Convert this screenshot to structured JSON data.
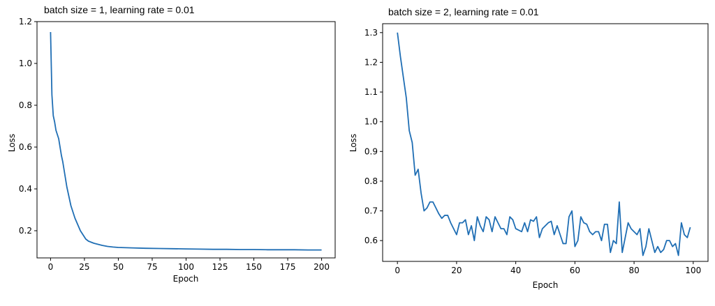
{
  "chart_data": [
    {
      "type": "line",
      "title": "batch size = 1, learning rate = 0.01",
      "xlabel": "Epoch",
      "ylabel": "Loss",
      "xlim": [
        -10,
        210
      ],
      "ylim": [
        0.07,
        1.2
      ],
      "xticks": [
        0,
        25,
        50,
        75,
        100,
        125,
        150,
        175,
        200
      ],
      "yticks": [
        0.2,
        0.4,
        0.6,
        0.8,
        1.0,
        1.2
      ],
      "ytick_format": 1,
      "grid": false,
      "line_color": "#1f6eb4",
      "series": [
        {
          "x": [
            0,
            1,
            2,
            3,
            4,
            5,
            6,
            7,
            8,
            9,
            10,
            11,
            12,
            13,
            14,
            15,
            16,
            17,
            18,
            19,
            20,
            22,
            24,
            26,
            28,
            30,
            32,
            35,
            38,
            42,
            46,
            50,
            60,
            70,
            80,
            90,
            100,
            110,
            120,
            130,
            140,
            150,
            160,
            170,
            180,
            190,
            200
          ],
          "y": [
            1.15,
            0.85,
            0.75,
            0.72,
            0.68,
            0.66,
            0.64,
            0.6,
            0.56,
            0.53,
            0.49,
            0.45,
            0.41,
            0.38,
            0.35,
            0.32,
            0.3,
            0.28,
            0.26,
            0.245,
            0.23,
            0.2,
            0.18,
            0.16,
            0.15,
            0.145,
            0.14,
            0.135,
            0.13,
            0.125,
            0.122,
            0.12,
            0.118,
            0.116,
            0.115,
            0.114,
            0.113,
            0.112,
            0.111,
            0.111,
            0.11,
            0.11,
            0.109,
            0.109,
            0.109,
            0.108,
            0.108
          ]
        }
      ]
    },
    {
      "type": "line",
      "title": "batch size = 2, learning rate = 0.01",
      "xlabel": "Epoch",
      "ylabel": "Loss",
      "xlim": [
        -5,
        105
      ],
      "ylim": [
        0.53,
        1.33
      ],
      "xticks": [
        0,
        20,
        40,
        60,
        80,
        100
      ],
      "yticks": [
        0.6,
        0.7,
        0.8,
        0.9,
        1.0,
        1.1,
        1.2,
        1.3
      ],
      "ytick_format": 1,
      "grid": false,
      "line_color": "#1f6eb4",
      "series": [
        {
          "x": [
            0,
            1,
            2,
            3,
            4,
            5,
            6,
            7,
            8,
            9,
            10,
            11,
            12,
            13,
            14,
            15,
            16,
            17,
            18,
            19,
            20,
            21,
            22,
            23,
            24,
            25,
            26,
            27,
            28,
            29,
            30,
            31,
            32,
            33,
            34,
            35,
            36,
            37,
            38,
            39,
            40,
            41,
            42,
            43,
            44,
            45,
            46,
            47,
            48,
            49,
            50,
            51,
            52,
            53,
            54,
            55,
            56,
            57,
            58,
            59,
            60,
            61,
            62,
            63,
            64,
            65,
            66,
            67,
            68,
            69,
            70,
            71,
            72,
            73,
            74,
            75,
            76,
            77,
            78,
            79,
            80,
            81,
            82,
            83,
            84,
            85,
            86,
            87,
            88,
            89,
            90,
            91,
            92,
            93,
            94,
            95,
            96,
            97,
            98,
            99
          ],
          "y": [
            1.3,
            1.22,
            1.15,
            1.08,
            0.97,
            0.93,
            0.82,
            0.84,
            0.76,
            0.7,
            0.71,
            0.73,
            0.73,
            0.71,
            0.69,
            0.675,
            0.685,
            0.685,
            0.66,
            0.64,
            0.62,
            0.66,
            0.66,
            0.67,
            0.62,
            0.65,
            0.6,
            0.68,
            0.65,
            0.63,
            0.68,
            0.67,
            0.63,
            0.68,
            0.66,
            0.64,
            0.64,
            0.62,
            0.68,
            0.67,
            0.64,
            0.635,
            0.63,
            0.66,
            0.63,
            0.67,
            0.665,
            0.68,
            0.61,
            0.64,
            0.65,
            0.66,
            0.665,
            0.62,
            0.65,
            0.62,
            0.59,
            0.59,
            0.68,
            0.7,
            0.58,
            0.6,
            0.68,
            0.66,
            0.655,
            0.63,
            0.62,
            0.63,
            0.63,
            0.6,
            0.655,
            0.655,
            0.56,
            0.6,
            0.59,
            0.73,
            0.56,
            0.61,
            0.66,
            0.64,
            0.63,
            0.62,
            0.64,
            0.55,
            0.58,
            0.64,
            0.6,
            0.56,
            0.58,
            0.56,
            0.57,
            0.6,
            0.6,
            0.58,
            0.59,
            0.55,
            0.66,
            0.62,
            0.61,
            0.645
          ]
        }
      ]
    }
  ]
}
